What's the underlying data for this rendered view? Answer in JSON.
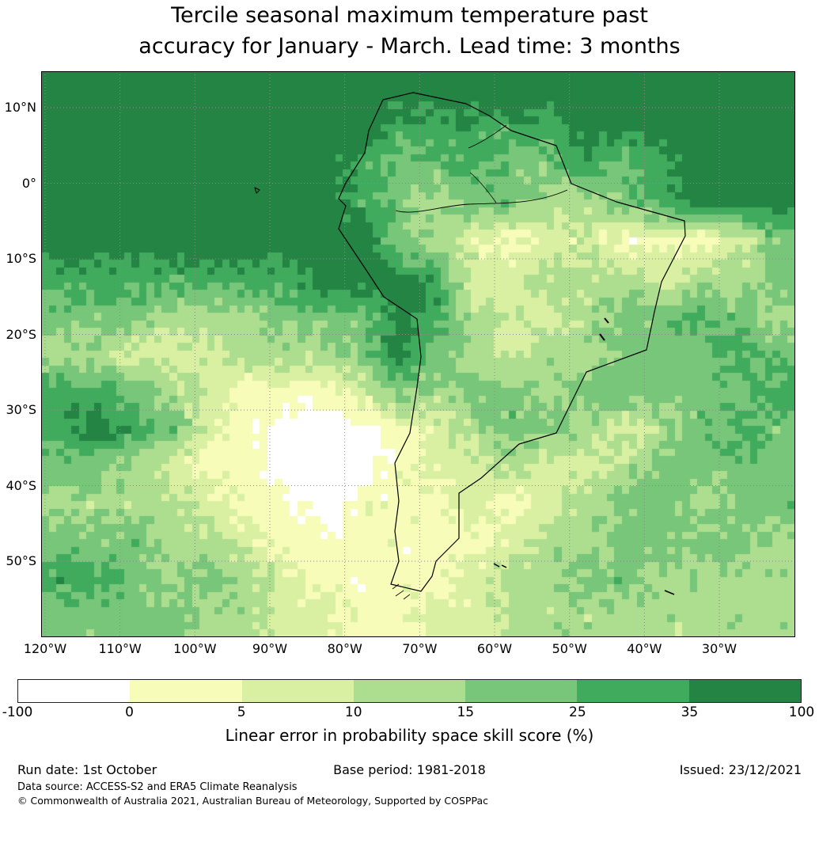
{
  "title": {
    "line1": "Tercile seasonal maximum temperature past",
    "line2": "accuracy for January - March. Lead time: 3 months"
  },
  "map": {
    "y_ticks": [
      "10°N",
      "0°",
      "10°S",
      "20°S",
      "30°S",
      "40°S",
      "50°S"
    ],
    "x_ticks": [
      "120°W",
      "110°W",
      "100°W",
      "90°W",
      "80°W",
      "70°W",
      "60°W",
      "50°W",
      "40°W",
      "30°W"
    ]
  },
  "colorbar": {
    "label": "Linear error in probability space skill score (%)",
    "ticks": [
      "-100",
      "0",
      "5",
      "10",
      "15",
      "25",
      "35",
      "100"
    ]
  },
  "footer": {
    "run_date": "Run date: 1st October",
    "base_period": "Base period: 1981-2018",
    "issued": "Issued: 23/12/2021",
    "data_source": "Data source: ACCESS-S2 and ERA5 Climate Reanalysis",
    "copyright": "© Commonwealth of Australia 2021, Australian Bureau of Meteorology, Supported by COSPPac"
  },
  "chart_data": {
    "type": "heatmap",
    "title": "Tercile seasonal maximum temperature past accuracy for January - March. Lead time: 3 months",
    "colorbar_label": "Linear error in probability space skill score (%)",
    "units": "%",
    "levels": [
      -100,
      0,
      5,
      10,
      15,
      25,
      35,
      100
    ],
    "palette": [
      "#ffffff",
      "#f7fcb9",
      "#d9f0a3",
      "#addd8e",
      "#78c679",
      "#41ab5d",
      "#238443"
    ],
    "x_tick_labels": [
      "120°W",
      "110°W",
      "100°W",
      "90°W",
      "80°W",
      "70°W",
      "60°W",
      "50°W",
      "40°W",
      "30°W"
    ],
    "y_tick_labels": [
      "10°N",
      "0°",
      "10°S",
      "20°S",
      "30°S",
      "40°S",
      "50°S"
    ],
    "grid_note": "Approximate skill-score bucket indices (0=-100..0, 1=0..5, 2=5..10, 3=10..15, 4=15..25, 5=25..35, 6=35..100) on a coarse 20x15 lon/lat grid covering ~120°W-20°W, 15°N-60°S; row 0 = north",
    "grid": [
      [
        6,
        6,
        6,
        6,
        6,
        6,
        6,
        6,
        6,
        6,
        6,
        6,
        6,
        6,
        6,
        6,
        6,
        6,
        6,
        6
      ],
      [
        6,
        6,
        6,
        6,
        6,
        6,
        6,
        6,
        6,
        5,
        5,
        5,
        5,
        5,
        6,
        6,
        6,
        6,
        6,
        6
      ],
      [
        6,
        6,
        6,
        6,
        6,
        6,
        6,
        6,
        5,
        4,
        4,
        5,
        4,
        4,
        5,
        4,
        5,
        6,
        6,
        6
      ],
      [
        6,
        6,
        6,
        6,
        6,
        6,
        6,
        6,
        5,
        4,
        3,
        4,
        4,
        3,
        3,
        4,
        5,
        6,
        6,
        6
      ],
      [
        6,
        6,
        6,
        6,
        6,
        6,
        6,
        6,
        6,
        4,
        3,
        2,
        1,
        2,
        2,
        1,
        1,
        1,
        2,
        4
      ],
      [
        5,
        5,
        5,
        5,
        5,
        5,
        5,
        6,
        6,
        6,
        5,
        2,
        2,
        3,
        3,
        3,
        2,
        3,
        3,
        4
      ],
      [
        4,
        4,
        4,
        3,
        3,
        3,
        4,
        4,
        4,
        6,
        5,
        3,
        2,
        2,
        3,
        4,
        4,
        5,
        4,
        3
      ],
      [
        3,
        3,
        2,
        2,
        2,
        3,
        3,
        3,
        4,
        6,
        4,
        3,
        2,
        3,
        3,
        4,
        4,
        4,
        5,
        4
      ],
      [
        5,
        5,
        4,
        3,
        2,
        1,
        1,
        1,
        2,
        4,
        3,
        4,
        4,
        3,
        4,
        4,
        4,
        4,
        4,
        5
      ],
      [
        5,
        6,
        5,
        4,
        2,
        1,
        0,
        0,
        0,
        1,
        2,
        3,
        4,
        4,
        3,
        2,
        3,
        4,
        5,
        4
      ],
      [
        4,
        4,
        3,
        2,
        1,
        1,
        0,
        0,
        0,
        1,
        2,
        2,
        3,
        2,
        2,
        3,
        4,
        4,
        4,
        4
      ],
      [
        3,
        3,
        3,
        3,
        2,
        1,
        1,
        0,
        1,
        1,
        1,
        2,
        1,
        2,
        3,
        4,
        4,
        3,
        4,
        4
      ],
      [
        4,
        4,
        4,
        3,
        3,
        2,
        1,
        1,
        1,
        1,
        1,
        1,
        2,
        3,
        3,
        4,
        4,
        4,
        4,
        3
      ],
      [
        5,
        5,
        4,
        3,
        4,
        3,
        2,
        1,
        1,
        1,
        1,
        2,
        3,
        3,
        4,
        4,
        3,
        3,
        3,
        3
      ],
      [
        4,
        4,
        4,
        4,
        3,
        3,
        2,
        2,
        1,
        1,
        2,
        2,
        3,
        3,
        3,
        3,
        3,
        3,
        3,
        3
      ]
    ]
  }
}
